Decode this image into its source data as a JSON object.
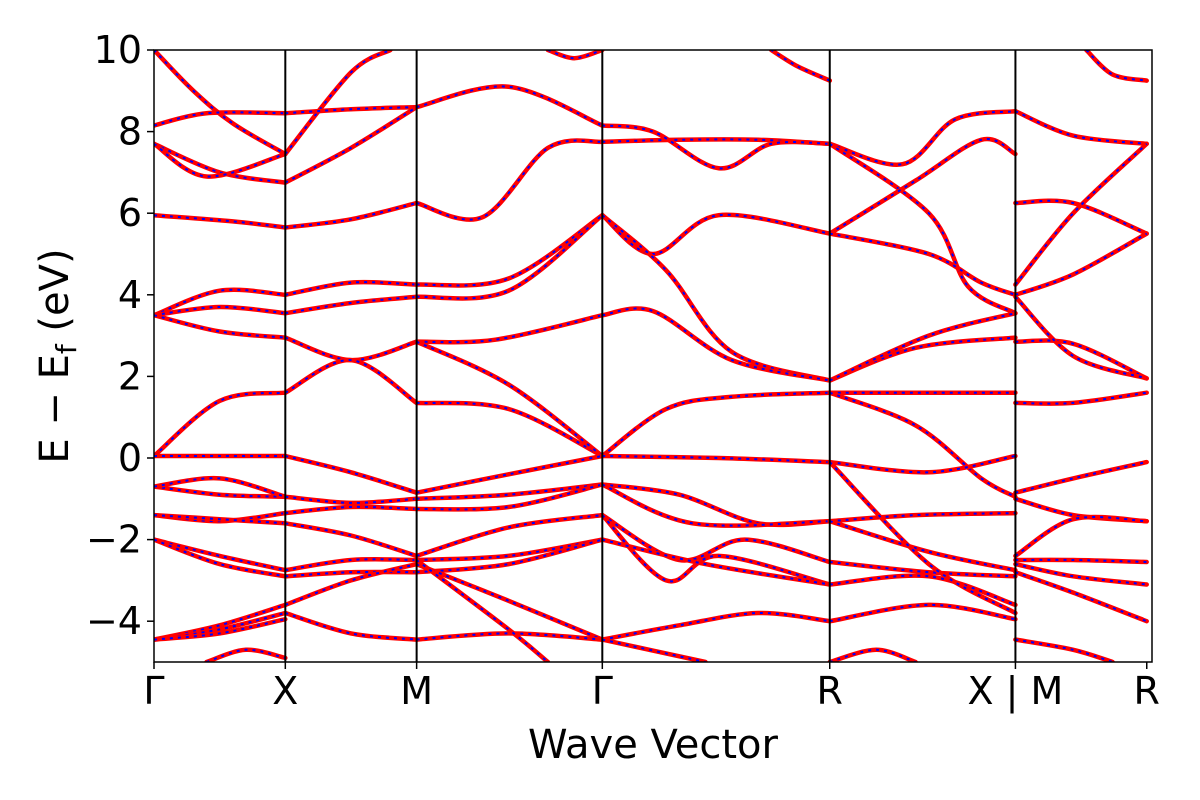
{
  "chart_data": {
    "type": "line",
    "xlabel": "Wave Vector",
    "ylabel": "E − E",
    "ylabel_sub": "f",
    "ylabel_unit": " (eV)",
    "ylim": [
      -5,
      10
    ],
    "yticks": [
      {
        "value": 10,
        "label": "10"
      },
      {
        "value": 8,
        "label": "8"
      },
      {
        "value": 6,
        "label": "6"
      },
      {
        "value": 4,
        "label": "4"
      },
      {
        "value": 2,
        "label": "2"
      },
      {
        "value": 0,
        "label": "0"
      },
      {
        "value": -2,
        "label": "−2"
      },
      {
        "value": -4,
        "label": "−4"
      }
    ],
    "xlim": [
      0,
      7.6
    ],
    "kpoints": [
      {
        "x": 0.0,
        "label": "Γ"
      },
      {
        "x": 1.0,
        "label": "X"
      },
      {
        "x": 2.0,
        "label": "M"
      },
      {
        "x": 3.414,
        "label": "Γ"
      },
      {
        "x": 5.146,
        "label": "R"
      },
      {
        "x": 6.56,
        "label": "X | M"
      },
      {
        "x": 7.56,
        "label": "R"
      }
    ],
    "grid": false,
    "colors": {
      "band": "#ff0000",
      "overlay": "#0000ff"
    },
    "bands": [
      [
        [
          0,
          10
        ],
        [
          0.3,
          9.0
        ],
        [
          0.6,
          8.2
        ],
        [
          1.0,
          7.45
        ]
      ],
      [
        [
          0,
          8.15
        ],
        [
          0.4,
          8.45
        ],
        [
          1.0,
          8.45
        ]
      ],
      [
        [
          0,
          7.7
        ],
        [
          0.5,
          7.0
        ],
        [
          1.0,
          6.75
        ]
      ],
      [
        [
          0,
          7.7
        ],
        [
          0.4,
          6.9
        ],
        [
          1.0,
          7.45
        ]
      ],
      [
        [
          0,
          5.95
        ],
        [
          0.6,
          5.8
        ],
        [
          1.0,
          5.65
        ]
      ],
      [
        [
          0,
          3.5
        ],
        [
          0.5,
          4.1
        ],
        [
          1.0,
          4.0
        ]
      ],
      [
        [
          0,
          3.5
        ],
        [
          0.5,
          3.7
        ],
        [
          1.0,
          3.55
        ]
      ],
      [
        [
          0,
          3.5
        ],
        [
          0.5,
          3.1
        ],
        [
          1.0,
          2.95
        ]
      ],
      [
        [
          0,
          0.05
        ],
        [
          0.5,
          1.4
        ],
        [
          1.0,
          1.6
        ]
      ],
      [
        [
          0,
          0.05
        ],
        [
          0.5,
          0.05
        ],
        [
          1.0,
          0.05
        ]
      ],
      [
        [
          0,
          -0.7
        ],
        [
          0.5,
          -0.9
        ],
        [
          1.0,
          -0.95
        ]
      ],
      [
        [
          0,
          -0.7
        ],
        [
          0.5,
          -0.5
        ],
        [
          1.0,
          -0.95
        ]
      ],
      [
        [
          0,
          -1.4
        ],
        [
          0.5,
          -1.55
        ],
        [
          1.0,
          -1.35
        ]
      ],
      [
        [
          0,
          -1.4
        ],
        [
          0.5,
          -1.5
        ],
        [
          1.0,
          -1.6
        ]
      ],
      [
        [
          0,
          -2.0
        ],
        [
          0.5,
          -2.4
        ],
        [
          1.0,
          -2.75
        ]
      ],
      [
        [
          0,
          -2.0
        ],
        [
          0.5,
          -2.6
        ],
        [
          1.0,
          -2.9
        ]
      ],
      [
        [
          0,
          -4.45
        ],
        [
          0.5,
          -4.1
        ],
        [
          1.0,
          -3.6
        ]
      ],
      [
        [
          0,
          -4.45
        ],
        [
          0.5,
          -4.2
        ],
        [
          1.0,
          -3.8
        ]
      ],
      [
        [
          0,
          -4.45
        ],
        [
          0.5,
          -4.3
        ],
        [
          1.0,
          -3.95
        ]
      ],
      [
        [
          0.4,
          -5.0
        ],
        [
          0.7,
          -4.7
        ],
        [
          1.0,
          -4.9
        ]
      ],
      [
        [
          1.0,
          7.45
        ],
        [
          1.5,
          9.45
        ],
        [
          1.8,
          10
        ]
      ],
      [
        [
          1.0,
          8.45
        ],
        [
          1.5,
          8.55
        ],
        [
          2.0,
          8.6
        ]
      ],
      [
        [
          1.0,
          6.75
        ],
        [
          1.5,
          7.6
        ],
        [
          2.0,
          8.6
        ]
      ],
      [
        [
          1.0,
          5.65
        ],
        [
          1.5,
          5.85
        ],
        [
          2.0,
          6.25
        ]
      ],
      [
        [
          1.0,
          4.0
        ],
        [
          1.5,
          4.3
        ],
        [
          2.0,
          4.25
        ]
      ],
      [
        [
          1.0,
          3.55
        ],
        [
          1.5,
          3.8
        ],
        [
          2.0,
          3.95
        ]
      ],
      [
        [
          1.0,
          2.95
        ],
        [
          1.5,
          2.4
        ],
        [
          2.0,
          2.85
        ]
      ],
      [
        [
          1.0,
          1.6
        ],
        [
          1.5,
          2.4
        ],
        [
          2.0,
          1.35
        ]
      ],
      [
        [
          1.0,
          0.05
        ],
        [
          1.5,
          -0.35
        ],
        [
          2.0,
          -0.85
        ]
      ],
      [
        [
          1.0,
          -0.95
        ],
        [
          1.5,
          -1.1
        ],
        [
          2.0,
          -1.0
        ]
      ],
      [
        [
          1.0,
          -1.35
        ],
        [
          1.5,
          -1.2
        ],
        [
          2.0,
          -1.25
        ]
      ],
      [
        [
          1.0,
          -1.6
        ],
        [
          1.5,
          -1.9
        ],
        [
          2.0,
          -2.4
        ]
      ],
      [
        [
          1.0,
          -2.75
        ],
        [
          1.5,
          -2.5
        ],
        [
          2.0,
          -2.5
        ]
      ],
      [
        [
          1.0,
          -2.9
        ],
        [
          1.5,
          -2.8
        ],
        [
          2.0,
          -2.8
        ]
      ],
      [
        [
          1.0,
          -3.6
        ],
        [
          1.5,
          -3.0
        ],
        [
          2.0,
          -2.6
        ]
      ],
      [
        [
          1.0,
          -3.8
        ],
        [
          1.5,
          -4.3
        ],
        [
          2.0,
          -4.45
        ]
      ],
      [
        [
          2.0,
          6.25
        ],
        [
          2.5,
          5.9
        ],
        [
          3.0,
          7.6
        ],
        [
          3.414,
          7.75
        ]
      ],
      [
        [
          2.0,
          8.6
        ],
        [
          2.7,
          9.1
        ],
        [
          3.414,
          8.15
        ]
      ],
      [
        [
          2.0,
          4.25
        ],
        [
          2.7,
          4.4
        ],
        [
          3.414,
          5.95
        ]
      ],
      [
        [
          2.0,
          3.95
        ],
        [
          2.7,
          4.1
        ],
        [
          3.414,
          5.95
        ]
      ],
      [
        [
          2.0,
          2.85
        ],
        [
          2.6,
          2.9
        ],
        [
          3.414,
          3.5
        ]
      ],
      [
        [
          2.0,
          1.35
        ],
        [
          2.7,
          1.2
        ],
        [
          3.414,
          0.05
        ]
      ],
      [
        [
          2.0,
          2.85
        ],
        [
          2.7,
          1.8
        ],
        [
          3.414,
          0.05
        ]
      ],
      [
        [
          2.0,
          -0.85
        ],
        [
          2.7,
          -0.4
        ],
        [
          3.414,
          0.05
        ]
      ],
      [
        [
          2.0,
          -1.0
        ],
        [
          2.7,
          -0.9
        ],
        [
          3.414,
          -0.65
        ]
      ],
      [
        [
          2.0,
          -1.25
        ],
        [
          2.7,
          -1.2
        ],
        [
          3.414,
          -0.65
        ]
      ],
      [
        [
          2.0,
          -2.4
        ],
        [
          2.7,
          -1.7
        ],
        [
          3.414,
          -1.4
        ]
      ],
      [
        [
          2.0,
          -2.5
        ],
        [
          2.7,
          -2.4
        ],
        [
          3.414,
          -2.0
        ]
      ],
      [
        [
          2.0,
          -2.8
        ],
        [
          2.7,
          -2.6
        ],
        [
          3.414,
          -2.0
        ]
      ],
      [
        [
          2.0,
          -2.6
        ],
        [
          2.7,
          -3.5
        ],
        [
          3.414,
          -4.45
        ]
      ],
      [
        [
          2.0,
          -4.45
        ],
        [
          2.7,
          -4.3
        ],
        [
          3.414,
          -4.45
        ]
      ],
      [
        [
          2.0,
          -2.5
        ],
        [
          2.7,
          -4.2
        ],
        [
          3.0,
          -5.0
        ]
      ],
      [
        [
          3.414,
          7.75
        ],
        [
          4.0,
          7.8
        ],
        [
          4.6,
          7.8
        ],
        [
          5.146,
          7.7
        ]
      ],
      [
        [
          3.414,
          8.15
        ],
        [
          3.8,
          8.0
        ],
        [
          4.3,
          7.1
        ],
        [
          4.7,
          7.7
        ],
        [
          5.146,
          7.7
        ]
      ],
      [
        [
          3.414,
          5.95
        ],
        [
          3.8,
          5.0
        ],
        [
          4.3,
          5.95
        ],
        [
          5.146,
          5.5
        ]
      ],
      [
        [
          3.414,
          5.95
        ],
        [
          3.9,
          4.6
        ],
        [
          4.4,
          2.6
        ],
        [
          5.146,
          1.9
        ]
      ],
      [
        [
          3.414,
          3.5
        ],
        [
          3.8,
          3.6
        ],
        [
          4.4,
          2.4
        ],
        [
          5.146,
          1.9
        ]
      ],
      [
        [
          3.414,
          0.05
        ],
        [
          3.9,
          1.2
        ],
        [
          4.4,
          1.5
        ],
        [
          5.146,
          1.6
        ]
      ],
      [
        [
          3.414,
          0.05
        ],
        [
          4.3,
          0.0
        ],
        [
          5.146,
          -0.1
        ]
      ],
      [
        [
          3.414,
          -0.65
        ],
        [
          4.0,
          -0.9
        ],
        [
          4.6,
          -1.6
        ],
        [
          5.146,
          -1.55
        ]
      ],
      [
        [
          3.414,
          -0.65
        ],
        [
          4.1,
          -1.6
        ],
        [
          5.146,
          -1.55
        ]
      ],
      [
        [
          3.414,
          -1.4
        ],
        [
          4.0,
          -2.5
        ],
        [
          4.5,
          -2.0
        ],
        [
          5.146,
          -2.55
        ]
      ],
      [
        [
          3.414,
          -1.4
        ],
        [
          3.9,
          -3.0
        ],
        [
          4.3,
          -2.4
        ],
        [
          5.146,
          -3.1
        ]
      ],
      [
        [
          3.414,
          -2.0
        ],
        [
          4.2,
          -2.6
        ],
        [
          5.146,
          -3.1
        ]
      ],
      [
        [
          3.414,
          -4.45
        ],
        [
          4.0,
          -4.1
        ],
        [
          4.6,
          -3.8
        ],
        [
          5.146,
          -4.0
        ]
      ],
      [
        [
          3.414,
          -4.45
        ],
        [
          4.2,
          -5.0
        ]
      ],
      [
        [
          3.0,
          10
        ],
        [
          3.2,
          9.8
        ],
        [
          3.414,
          10
        ]
      ],
      [
        [
          5.146,
          9.25
        ],
        [
          4.9,
          9.6
        ],
        [
          4.7,
          10
        ]
      ],
      [
        [
          5.146,
          7.7
        ],
        [
          5.7,
          7.2
        ],
        [
          6.1,
          8.3
        ],
        [
          6.56,
          8.5
        ]
      ],
      [
        [
          5.146,
          7.7
        ],
        [
          5.9,
          6.0
        ],
        [
          6.2,
          4.2
        ],
        [
          6.56,
          3.55
        ]
      ],
      [
        [
          5.146,
          5.5
        ],
        [
          5.8,
          6.8
        ],
        [
          6.3,
          7.8
        ],
        [
          6.56,
          7.45
        ]
      ],
      [
        [
          5.146,
          5.5
        ],
        [
          5.9,
          5.0
        ],
        [
          6.3,
          4.3
        ],
        [
          6.56,
          4.0
        ]
      ],
      [
        [
          5.146,
          1.9
        ],
        [
          5.8,
          2.7
        ],
        [
          6.56,
          2.95
        ]
      ],
      [
        [
          5.146,
          1.9
        ],
        [
          5.9,
          3.0
        ],
        [
          6.56,
          3.55
        ]
      ],
      [
        [
          5.146,
          1.6
        ],
        [
          5.9,
          1.6
        ],
        [
          6.56,
          1.6
        ]
      ],
      [
        [
          5.146,
          1.6
        ],
        [
          5.8,
          0.8
        ],
        [
          6.3,
          -0.5
        ],
        [
          6.56,
          -0.95
        ]
      ],
      [
        [
          5.146,
          -0.1
        ],
        [
          5.9,
          -0.35
        ],
        [
          6.56,
          0.05
        ]
      ],
      [
        [
          5.146,
          -1.55
        ],
        [
          5.8,
          -1.4
        ],
        [
          6.56,
          -1.35
        ]
      ],
      [
        [
          5.146,
          -1.55
        ],
        [
          5.9,
          -2.3
        ],
        [
          6.56,
          -2.75
        ]
      ],
      [
        [
          5.146,
          -2.55
        ],
        [
          5.9,
          -2.8
        ],
        [
          6.56,
          -2.9
        ]
      ],
      [
        [
          5.146,
          -3.1
        ],
        [
          5.9,
          -2.9
        ],
        [
          6.56,
          -3.6
        ]
      ],
      [
        [
          5.146,
          -0.1
        ],
        [
          5.9,
          -2.6
        ],
        [
          6.56,
          -3.8
        ]
      ],
      [
        [
          5.146,
          -4.0
        ],
        [
          5.9,
          -3.6
        ],
        [
          6.56,
          -3.95
        ]
      ],
      [
        [
          5.146,
          -5.0
        ],
        [
          5.5,
          -4.7
        ],
        [
          5.8,
          -5.0
        ]
      ],
      [
        [
          6.56,
          8.5
        ],
        [
          7.0,
          7.9
        ],
        [
          7.56,
          7.7
        ]
      ],
      [
        [
          6.56,
          6.25
        ],
        [
          7.0,
          6.25
        ],
        [
          7.56,
          5.5
        ]
      ],
      [
        [
          6.56,
          4.25
        ],
        [
          7.0,
          6.0
        ],
        [
          7.56,
          7.7
        ]
      ],
      [
        [
          6.56,
          4.0
        ],
        [
          7.0,
          4.5
        ],
        [
          7.56,
          5.5
        ]
      ],
      [
        [
          6.56,
          2.85
        ],
        [
          7.0,
          2.8
        ],
        [
          7.56,
          1.95
        ]
      ],
      [
        [
          6.56,
          3.95
        ],
        [
          7.0,
          2.5
        ],
        [
          7.56,
          1.95
        ]
      ],
      [
        [
          6.56,
          1.35
        ],
        [
          7.0,
          1.35
        ],
        [
          7.56,
          1.6
        ]
      ],
      [
        [
          6.56,
          -0.85
        ],
        [
          7.0,
          -0.5
        ],
        [
          7.56,
          -0.1
        ]
      ],
      [
        [
          6.56,
          -1.0
        ],
        [
          7.0,
          -1.4
        ],
        [
          7.56,
          -1.55
        ]
      ],
      [
        [
          6.56,
          -2.4
        ],
        [
          7.0,
          -1.5
        ],
        [
          7.56,
          -1.55
        ]
      ],
      [
        [
          6.56,
          -2.5
        ],
        [
          7.0,
          -2.5
        ],
        [
          7.56,
          -2.55
        ]
      ],
      [
        [
          6.56,
          -2.6
        ],
        [
          7.0,
          -2.9
        ],
        [
          7.56,
          -3.1
        ]
      ],
      [
        [
          6.56,
          -2.8
        ],
        [
          7.0,
          -3.3
        ],
        [
          7.56,
          -4.0
        ]
      ],
      [
        [
          6.56,
          -4.45
        ],
        [
          7.0,
          -4.7
        ],
        [
          7.3,
          -5.0
        ]
      ],
      [
        [
          7.1,
          10
        ],
        [
          7.3,
          9.4
        ],
        [
          7.56,
          9.25
        ]
      ]
    ]
  }
}
